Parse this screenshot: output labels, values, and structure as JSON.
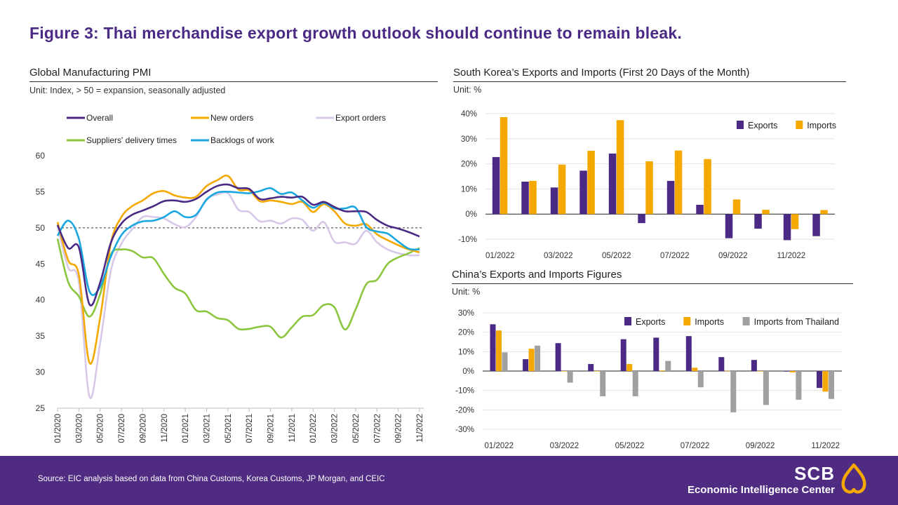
{
  "title": "Figure 3: Thai merchandise export growth outlook should continue to remain bleak.",
  "footer": {
    "source": "Source: EIC analysis based on data from China Customs, Korea Customs, JP Morgan, and CEIC",
    "brand_name": "SCB",
    "brand_sub": "Economic Intelligence Center"
  },
  "panels": {
    "pmi": {
      "title": "Global Manufacturing PMI",
      "unit": "Unit: Index, > 50 = expansion,  seasonally adjusted"
    },
    "korea": {
      "title": "South Korea’s Exports and Imports (First 20 Days of the Month)",
      "unit": "Unit: %"
    },
    "china": {
      "title": "China’s Exports and Imports Figures",
      "unit": "Unit: %"
    }
  },
  "colors": {
    "purple": "#4b2a85",
    "orange": "#f5a800",
    "lavender": "#d8c8e8",
    "green": "#8cc63f",
    "blue": "#1aa7e0",
    "grey": "#a0a0a0"
  },
  "chart_data": [
    {
      "type": "line",
      "title": "Global Manufacturing PMI",
      "x": [
        "01/2020",
        "02/2020",
        "03/2020",
        "04/2020",
        "05/2020",
        "06/2020",
        "07/2020",
        "08/2020",
        "09/2020",
        "10/2020",
        "11/2020",
        "12/2020",
        "01/2021",
        "02/2021",
        "03/2021",
        "04/2021",
        "05/2021",
        "06/2021",
        "07/2021",
        "08/2021",
        "09/2021",
        "10/2021",
        "11/2021",
        "12/2021",
        "01/2022",
        "02/2022",
        "03/2022",
        "04/2022",
        "05/2022",
        "06/2022",
        "07/2022",
        "08/2022",
        "09/2022",
        "10/2022",
        "11/2022"
      ],
      "xticks": [
        "01/2020",
        "03/2020",
        "05/2020",
        "07/2020",
        "09/2020",
        "11/2020",
        "01/2021",
        "03/2021",
        "05/2021",
        "07/2021",
        "09/2021",
        "11/2021",
        "01/2022",
        "03/2022",
        "05/2022",
        "07/2022",
        "09/2022",
        "11/2022"
      ],
      "yticks": [
        25,
        30,
        35,
        40,
        45,
        50,
        55,
        60
      ],
      "ylim": [
        25,
        60
      ],
      "reference_line": 50,
      "series": [
        {
          "name": "Overall",
          "color": "#4b2a85",
          "values": [
            50.4,
            47.2,
            47.3,
            39.4,
            42.4,
            47.9,
            50.6,
            51.8,
            52.4,
            53.0,
            53.7,
            53.8,
            53.6,
            54.0,
            55.0,
            55.8,
            56.0,
            55.5,
            55.4,
            54.0,
            54.1,
            54.3,
            54.2,
            54.3,
            53.2,
            53.6,
            52.9,
            52.3,
            52.3,
            52.2,
            51.1,
            50.3,
            49.9,
            49.4,
            48.8
          ]
        },
        {
          "name": "New orders",
          "color": "#f5a800",
          "values": [
            50.8,
            45.5,
            43.5,
            31.3,
            37.5,
            47.8,
            51.5,
            53.0,
            53.8,
            54.8,
            55.1,
            54.5,
            54.2,
            54.3,
            55.8,
            56.6,
            57.2,
            55.3,
            55.2,
            53.7,
            53.8,
            53.6,
            53.3,
            53.6,
            52.2,
            53.3,
            52.3,
            50.6,
            50.3,
            50.5,
            49.1,
            48.3,
            47.6,
            47.0,
            46.6
          ]
        },
        {
          "name": "Export orders",
          "color": "#d8c8e8",
          "values": [
            50.2,
            44.5,
            42.5,
            26.6,
            34.0,
            44.0,
            47.8,
            49.8,
            51.5,
            51.5,
            51.3,
            50.5,
            50.1,
            51.5,
            54.0,
            54.6,
            54.8,
            52.5,
            52.2,
            50.9,
            51.0,
            50.6,
            51.3,
            51.1,
            49.6,
            50.8,
            48.1,
            48.0,
            47.8,
            49.6,
            48.0,
            47.0,
            46.5,
            46.2,
            46.2
          ]
        },
        {
          "name": "Suppliers' delivery times",
          "color": "#8cc63f",
          "values": [
            48.5,
            42.5,
            40.5,
            37.7,
            40.8,
            46.3,
            47.0,
            46.8,
            45.9,
            45.8,
            43.6,
            41.7,
            40.9,
            38.6,
            38.4,
            37.5,
            37.2,
            36.0,
            36.0,
            36.3,
            36.3,
            34.8,
            36.2,
            37.7,
            37.9,
            39.3,
            39.0,
            35.9,
            38.7,
            42.2,
            42.8,
            45.0,
            45.9,
            46.5,
            47.2
          ]
        },
        {
          "name": "Backlogs of work",
          "color": "#1aa7e0",
          "values": [
            48.9,
            51.0,
            48.5,
            41.2,
            41.8,
            46.0,
            49.0,
            50.3,
            50.9,
            51.0,
            51.5,
            52.3,
            51.5,
            51.8,
            53.9,
            54.9,
            55.0,
            54.9,
            54.8,
            55.1,
            55.5,
            54.7,
            54.9,
            53.8,
            52.8,
            53.5,
            52.7,
            52.7,
            52.8,
            50.1,
            49.5,
            49.2,
            48.1,
            47.1,
            47.0
          ]
        }
      ]
    },
    {
      "type": "bar",
      "title": "South Korea’s Exports and Imports (First 20 Days of the Month)",
      "categories": [
        "01/2022",
        "02/2022",
        "03/2022",
        "04/2022",
        "05/2022",
        "06/2022",
        "07/2022",
        "08/2022",
        "09/2022",
        "10/2022",
        "11/2022",
        "12/2022"
      ],
      "xticks": [
        "01/2022",
        "03/2022",
        "05/2022",
        "07/2022",
        "09/2022",
        "11/2022"
      ],
      "yticks": [
        "40%",
        "30%",
        "20%",
        "10%",
        "0%",
        "-10%"
      ],
      "ylim": [
        -10,
        40
      ],
      "legend_position": "top-right",
      "series": [
        {
          "name": "Exports",
          "color": "#4b2a85",
          "values": [
            22.7,
            12.9,
            10.6,
            17.3,
            24.1,
            -3.6,
            13.2,
            3.7,
            -9.6,
            -5.8,
            -10.4,
            -8.8
          ]
        },
        {
          "name": "Imports",
          "color": "#f5a800",
          "values": [
            38.6,
            13.2,
            19.7,
            25.2,
            37.4,
            21.0,
            25.3,
            21.9,
            5.8,
            1.7,
            -6.0,
            1.6
          ]
        }
      ]
    },
    {
      "type": "bar",
      "title": "China’s Exports and Imports Figures",
      "categories": [
        "01/2022",
        "02/2022",
        "03/2022",
        "04/2022",
        "05/2022",
        "06/2022",
        "07/2022",
        "08/2022",
        "09/2022",
        "10/2022",
        "11/2022"
      ],
      "xticks": [
        "01/2022",
        "03/2022",
        "05/2022",
        "07/2022",
        "09/2022",
        "11/2022"
      ],
      "yticks": [
        "30%",
        "20%",
        "10%",
        "0%",
        "-10%",
        "-20%",
        "-30%"
      ],
      "ylim": [
        -30,
        30
      ],
      "legend_position": "top-right",
      "series": [
        {
          "name": "Exports",
          "color": "#4b2a85",
          "values": [
            24.1,
            6.1,
            14.4,
            3.6,
            16.4,
            17.2,
            18.0,
            7.2,
            5.7,
            -0.3,
            -8.7
          ]
        },
        {
          "name": "Imports",
          "color": "#f5a800",
          "values": [
            20.9,
            11.5,
            -0.1,
            0.0,
            3.6,
            0.3,
            1.7,
            0.1,
            0.0,
            -0.7,
            -10.6
          ]
        },
        {
          "name": "Imports from Thailand",
          "color": "#a0a0a0",
          "values": [
            9.6,
            13.1,
            -6.0,
            -13.0,
            -13.0,
            5.2,
            -8.4,
            -21.3,
            -17.5,
            -14.8,
            -14.4
          ]
        }
      ]
    }
  ]
}
